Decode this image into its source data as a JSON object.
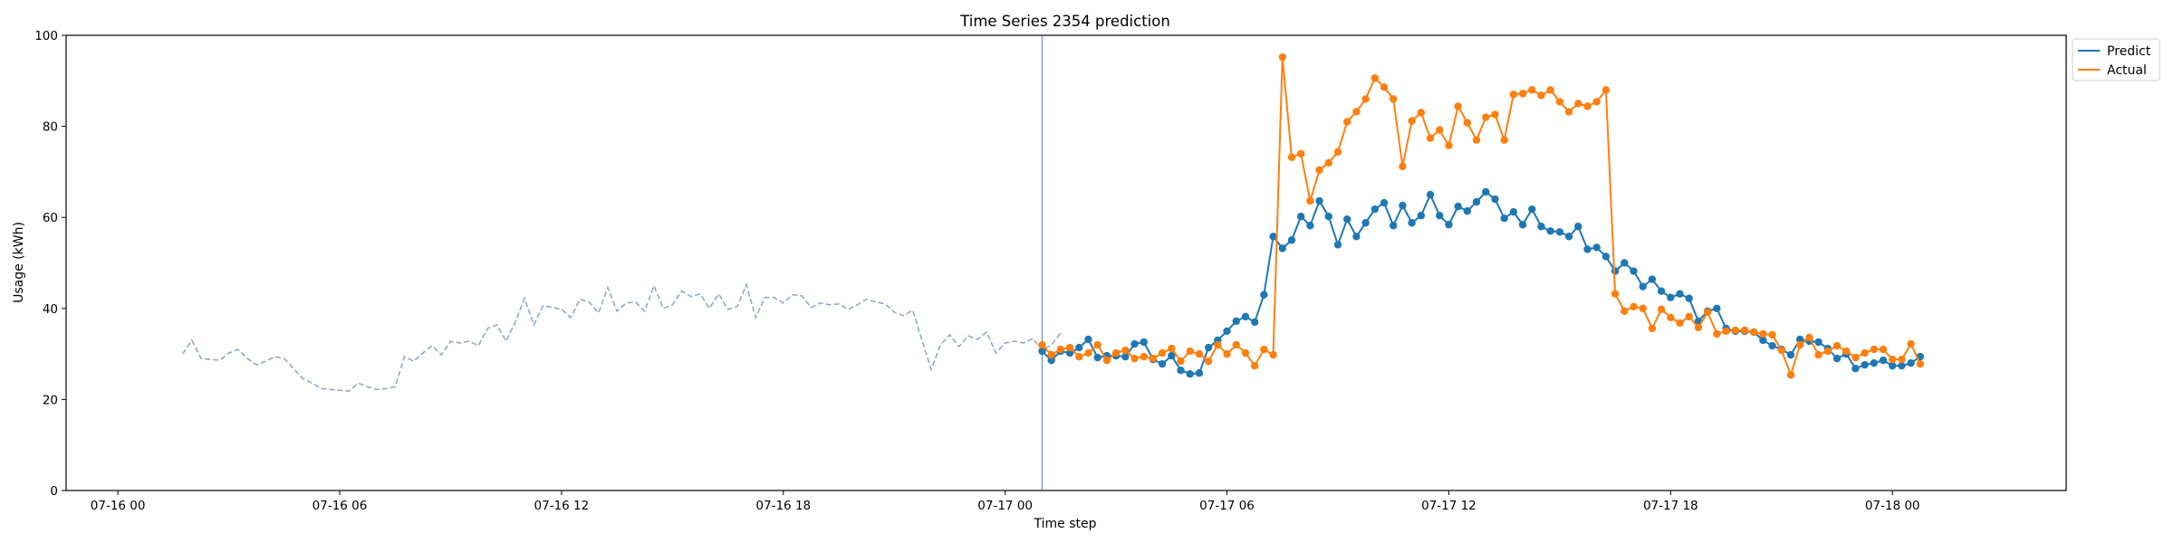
{
  "chart_data": {
    "type": "line",
    "title": "Time Series 2354 prediction",
    "xlabel": "Time step",
    "ylabel": "Usage (kWh)",
    "x_unit": "hours",
    "xlim_hours": [
      -1.4,
      52.7
    ],
    "ylim": [
      0,
      100
    ],
    "x_ticks": [
      {
        "hours": 0,
        "label": "07-16 00"
      },
      {
        "hours": 6,
        "label": "07-16 06"
      },
      {
        "hours": 12,
        "label": "07-16 12"
      },
      {
        "hours": 18,
        "label": "07-16 18"
      },
      {
        "hours": 24,
        "label": "07-17 00"
      },
      {
        "hours": 30,
        "label": "07-17 06"
      },
      {
        "hours": 36,
        "label": "07-17 12"
      },
      {
        "hours": 42,
        "label": "07-17 18"
      },
      {
        "hours": 48,
        "label": "07-18 00"
      }
    ],
    "y_ticks": [
      0,
      20,
      40,
      60,
      80,
      100
    ],
    "forecast_start_hours": 25.0,
    "history": {
      "color": "#8fa9c6",
      "start_hours": 1.75,
      "step_hours": 0.25,
      "values": [
        30.0,
        33.0,
        29.0,
        28.8,
        28.6,
        30.2,
        31.0,
        29.0,
        27.6,
        28.4,
        29.4,
        29.0,
        26.8,
        24.6,
        23.6,
        22.4,
        22.2,
        22.0,
        21.8,
        23.6,
        22.8,
        22.2,
        22.4,
        22.8,
        29.4,
        28.4,
        30.2,
        31.8,
        29.8,
        32.8,
        32.4,
        32.8,
        31.8,
        35.6,
        36.4,
        32.8,
        37.0,
        42.2,
        36.4,
        40.6,
        40.2,
        39.8,
        38.0,
        42.0,
        41.4,
        39.0,
        44.6,
        39.4,
        41.2,
        41.4,
        39.4,
        45.0,
        40.0,
        40.8,
        43.8,
        42.6,
        43.2,
        40.0,
        43.2,
        39.8,
        40.4,
        45.2,
        38.0,
        42.4,
        42.4,
        41.2,
        43.0,
        42.8,
        40.2,
        41.2,
        40.8,
        41.0,
        39.8,
        40.8,
        42.0,
        41.4,
        41.0,
        39.2,
        38.4,
        39.6,
        33.0,
        26.6,
        32.0,
        34.2,
        31.6,
        34.0,
        33.2,
        34.8,
        30.2,
        32.4,
        32.8,
        32.4,
        33.4,
        30.8,
        32.0,
        34.6
      ]
    },
    "series": [
      {
        "name": "Predict",
        "color": "#1f77b4",
        "start_hours": 25.0,
        "step_hours": 0.25,
        "values": [
          30.6,
          28.6,
          30.6,
          30.2,
          31.4,
          33.2,
          29.2,
          29.6,
          29.6,
          29.4,
          32.2,
          32.6,
          28.8,
          27.8,
          29.6,
          26.4,
          25.6,
          25.8,
          31.4,
          33.0,
          35.0,
          37.2,
          38.2,
          37.0,
          43.0,
          55.8,
          53.2,
          55.0,
          60.2,
          58.2,
          63.6,
          60.2,
          54.0,
          59.6,
          55.8,
          58.8,
          61.8,
          63.2,
          58.2,
          62.6,
          58.8,
          60.4,
          65.0,
          60.4,
          58.4,
          62.4,
          61.4,
          63.4,
          65.6,
          64.0,
          59.8,
          61.2,
          58.4,
          61.8,
          58.0,
          57.0,
          56.8,
          55.8,
          58.0,
          53.0,
          53.4,
          51.4,
          48.2,
          50.0,
          48.2,
          44.8,
          46.4,
          43.8,
          42.4,
          43.2,
          42.2,
          37.2,
          39.4,
          40.0,
          35.6,
          35.0,
          35.0,
          34.8,
          33.0,
          31.8,
          31.0,
          29.8,
          33.2,
          32.8,
          32.6,
          31.2,
          29.0,
          30.0,
          26.8,
          27.6,
          28.0,
          28.6,
          27.4,
          27.4,
          28.0,
          29.4
        ]
      },
      {
        "name": "Actual",
        "color": "#ff7f0e",
        "start_hours": 25.0,
        "step_hours": 0.25,
        "values": [
          32.0,
          29.8,
          31.0,
          31.4,
          29.4,
          30.2,
          32.0,
          28.6,
          30.2,
          30.8,
          29.0,
          29.4,
          29.0,
          30.2,
          31.2,
          28.4,
          30.6,
          30.0,
          28.4,
          32.0,
          30.0,
          32.0,
          30.2,
          27.4,
          31.0,
          29.8,
          95.2,
          73.2,
          74.0,
          63.6,
          70.4,
          72.0,
          74.4,
          81.0,
          83.2,
          86.0,
          90.6,
          88.6,
          86.0,
          71.2,
          81.2,
          83.0,
          77.4,
          79.2,
          75.8,
          84.4,
          80.8,
          77.0,
          82.0,
          82.6,
          77.0,
          87.0,
          87.2,
          88.0,
          86.8,
          88.0,
          85.4,
          83.2,
          85.0,
          84.4,
          85.4,
          88.0,
          43.2,
          39.4,
          40.4,
          40.0,
          35.6,
          39.8,
          38.0,
          36.8,
          38.2,
          35.8,
          39.2,
          34.4,
          35.0,
          35.2,
          35.2,
          34.8,
          34.4,
          34.2,
          30.8,
          25.4,
          32.0,
          33.6,
          29.8,
          30.6,
          31.8,
          30.6,
          29.2,
          30.2,
          31.0,
          31.0,
          28.8,
          28.8,
          32.2,
          27.8
        ]
      }
    ],
    "legend": {
      "position": "outside-top-right"
    },
    "grid": false
  }
}
